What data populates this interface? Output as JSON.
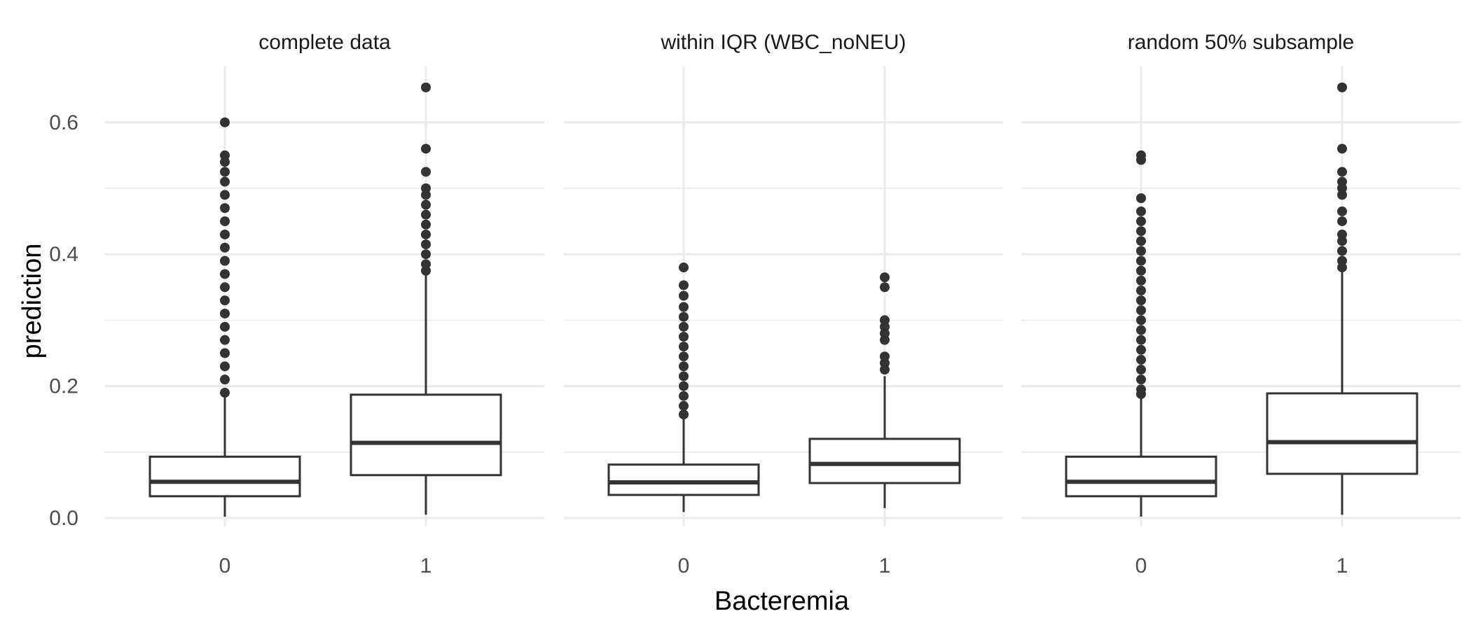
{
  "chart_data": {
    "type": "boxplot",
    "xlabel": "Bacteremia",
    "ylabel": "prediction",
    "ylim": [
      0,
      0.65
    ],
    "y_ticks": [
      0.0,
      0.2,
      0.4,
      0.6
    ],
    "y_tick_labels": [
      "0.0",
      "0.2",
      "0.4",
      "0.6"
    ],
    "categories": [
      "0",
      "1"
    ],
    "grid": true,
    "colors": {
      "box": "#333333",
      "grid": "#ebebeb",
      "text": "#4d4d4d"
    },
    "facets": [
      {
        "title": "complete data",
        "boxes": [
          {
            "category": "0",
            "whisker_low": 0.002,
            "q1": 0.033,
            "median": 0.055,
            "q3": 0.093,
            "whisker_high": 0.183,
            "outliers": [
              0.6,
              0.55,
              0.54,
              0.525,
              0.51,
              0.49,
              0.47,
              0.45,
              0.43,
              0.41,
              0.39,
              0.37,
              0.35,
              0.33,
              0.31,
              0.29,
              0.27,
              0.25,
              0.23,
              0.21,
              0.19
            ]
          },
          {
            "category": "1",
            "whisker_low": 0.005,
            "q1": 0.065,
            "median": 0.114,
            "q3": 0.187,
            "whisker_high": 0.37,
            "outliers": [
              0.653,
              0.56,
              0.525,
              0.5,
              0.49,
              0.475,
              0.46,
              0.445,
              0.43,
              0.415,
              0.4,
              0.385,
              0.375
            ]
          }
        ]
      },
      {
        "title": "within IQR (WBC_noNEU)",
        "boxes": [
          {
            "category": "0",
            "whisker_low": 0.009,
            "q1": 0.035,
            "median": 0.054,
            "q3": 0.081,
            "whisker_high": 0.15,
            "outliers": [
              0.38,
              0.353,
              0.337,
              0.32,
              0.305,
              0.29,
              0.275,
              0.26,
              0.245,
              0.23,
              0.215,
              0.2,
              0.185,
              0.17,
              0.157
            ]
          },
          {
            "category": "1",
            "whisker_low": 0.015,
            "q1": 0.053,
            "median": 0.082,
            "q3": 0.12,
            "whisker_high": 0.215,
            "outliers": [
              0.365,
              0.35,
              0.3,
              0.29,
              0.28,
              0.27,
              0.245,
              0.235,
              0.225
            ]
          }
        ]
      },
      {
        "title": "random 50% subsample",
        "boxes": [
          {
            "category": "0",
            "whisker_low": 0.002,
            "q1": 0.033,
            "median": 0.055,
            "q3": 0.093,
            "whisker_high": 0.183,
            "outliers": [
              0.55,
              0.543,
              0.485,
              0.465,
              0.45,
              0.435,
              0.42,
              0.405,
              0.39,
              0.375,
              0.36,
              0.345,
              0.33,
              0.315,
              0.3,
              0.285,
              0.27,
              0.255,
              0.24,
              0.225,
              0.21,
              0.195,
              0.188
            ]
          },
          {
            "category": "1",
            "whisker_low": 0.005,
            "q1": 0.067,
            "median": 0.115,
            "q3": 0.189,
            "whisker_high": 0.375,
            "outliers": [
              0.653,
              0.56,
              0.525,
              0.51,
              0.5,
              0.49,
              0.465,
              0.45,
              0.43,
              0.42,
              0.405,
              0.39,
              0.38
            ]
          }
        ]
      }
    ]
  }
}
